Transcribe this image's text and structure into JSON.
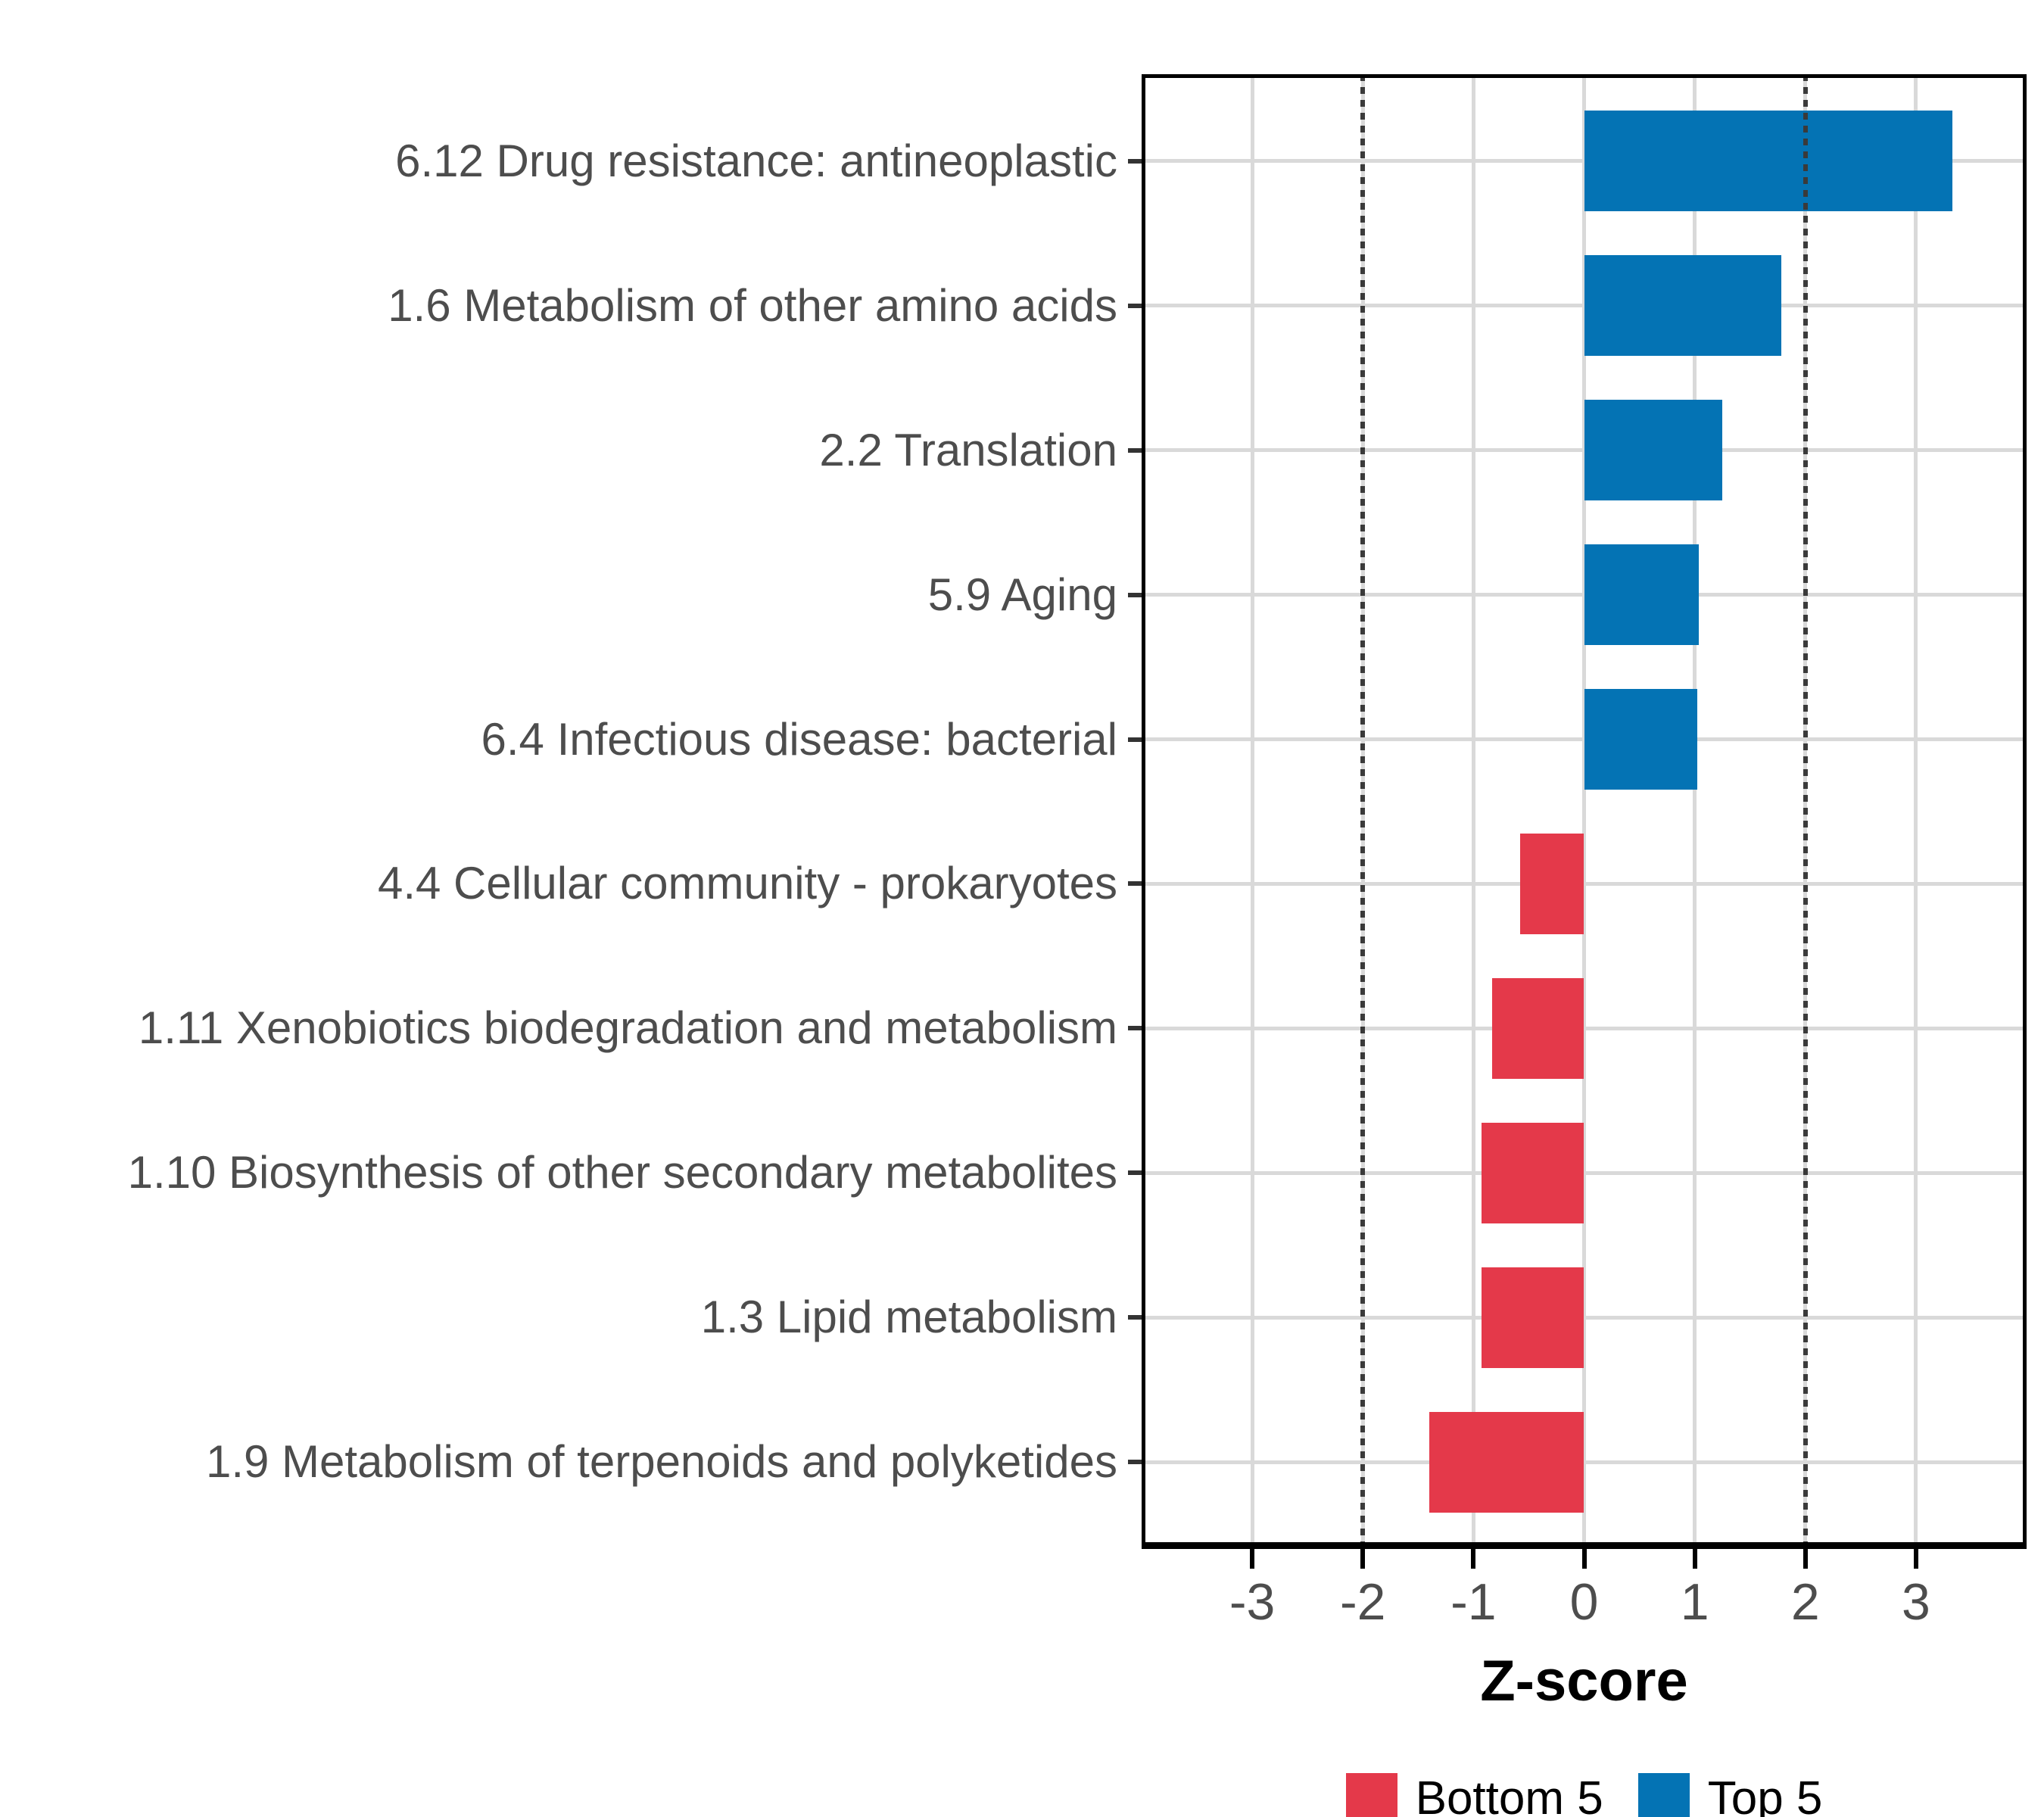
{
  "chart_data": {
    "type": "bar",
    "orientation": "horizontal",
    "title": "",
    "xlabel": "Z-score",
    "ylabel": "",
    "xlim": [
      -4,
      4
    ],
    "x_ticks": [
      -3,
      -2,
      -1,
      0,
      1,
      2,
      3
    ],
    "x_tick_labels": [
      "-3",
      "-2",
      "-1",
      "0",
      "1",
      "2",
      "3"
    ],
    "reference_lines": [
      -2,
      2
    ],
    "grid": "major-only",
    "legend_position": "bottom",
    "categories": [
      "6.12 Drug resistance: antineoplastic",
      "1.6 Metabolism of other amino acids",
      "2.2 Translation",
      "5.9 Aging",
      "6.4 Infectious disease: bacterial",
      "4.4 Cellular community - prokaryotes",
      "1.11 Xenobiotics biodegradation and metabolism",
      "1.10 Biosynthesis of other secondary metabolites",
      "1.3 Lipid metabolism",
      "1.9 Metabolism of terpenoids and polyketides"
    ],
    "values": [
      3.33,
      1.78,
      1.25,
      1.04,
      1.02,
      -0.58,
      -0.83,
      -0.93,
      -0.93,
      -1.4
    ],
    "groups": [
      "Top 5",
      "Top 5",
      "Top 5",
      "Top 5",
      "Top 5",
      "Bottom 5",
      "Bottom 5",
      "Bottom 5",
      "Bottom 5",
      "Bottom 5"
    ],
    "legend": [
      {
        "label": "Bottom 5",
        "color": "#e4394a"
      },
      {
        "label": "Top 5",
        "color": "#0473b4"
      }
    ],
    "colors": {
      "top5": "#0473b4",
      "bottom5": "#e4394a",
      "gridline": "#d9d9d9",
      "reference_line": "#3a3a3a",
      "axis_text": "#4d4d4d",
      "panel_border": "#000000"
    }
  }
}
